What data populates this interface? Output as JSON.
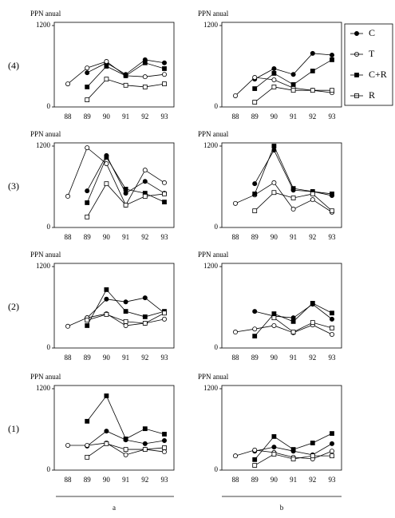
{
  "chart_data": [
    {
      "type": "line",
      "row_label": "(4)",
      "y_label": "PPN anual",
      "categories": [
        "88",
        "89",
        "90",
        "91",
        "92",
        "93"
      ],
      "ylim": [
        0,
        1200
      ],
      "yticks": [
        0,
        1200
      ],
      "series": [
        {
          "marker": "circle",
          "fill": "filled",
          "color": "#000000",
          "values": [
            null,
            505,
            650,
            480,
            695,
            650
          ]
        },
        {
          "marker": "circle",
          "fill": "open",
          "color": "#000000",
          "values": [
            340,
            575,
            670,
            460,
            445,
            480
          ]
        },
        {
          "marker": "square",
          "fill": "filled",
          "color": "#000000",
          "values": [
            null,
            295,
            600,
            460,
            650,
            565
          ]
        },
        {
          "marker": "square",
          "fill": "open",
          "color": "#000000",
          "values": [
            null,
            105,
            410,
            320,
            295,
            340
          ]
        }
      ]
    },
    {
      "type": "line",
      "y_label": "PPN anual",
      "categories": [
        "88",
        "89",
        "90",
        "91",
        "92",
        "93"
      ],
      "ylim": [
        0,
        1200
      ],
      "yticks": [
        0,
        1200
      ],
      "series": [
        {
          "name": "C",
          "marker": "circle",
          "fill": "filled",
          "color": "#000000",
          "values": [
            null,
            410,
            565,
            480,
            790,
            765
          ]
        },
        {
          "name": "T",
          "marker": "circle",
          "fill": "open",
          "color": "#000000",
          "values": [
            165,
            435,
            400,
            280,
            245,
            210
          ]
        },
        {
          "name": "C+R",
          "marker": "square",
          "fill": "filled",
          "color": "#000000",
          "values": [
            null,
            270,
            495,
            330,
            530,
            695
          ]
        },
        {
          "name": "R",
          "marker": "square",
          "fill": "open",
          "color": "#000000",
          "values": [
            null,
            70,
            295,
            245,
            245,
            245
          ]
        }
      ]
    },
    {
      "type": "line",
      "row_label": "(3)",
      "y_label": "PPN anual",
      "categories": [
        "88",
        "89",
        "90",
        "91",
        "92",
        "93"
      ],
      "ylim": [
        0,
        1200
      ],
      "yticks": [
        0,
        1200
      ],
      "series": [
        {
          "marker": "circle",
          "fill": "filled",
          "color": "#000000",
          "values": [
            null,
            540,
            1060,
            505,
            680,
            505
          ]
        },
        {
          "marker": "circle",
          "fill": "open",
          "color": "#000000",
          "values": [
            460,
            1175,
            940,
            330,
            845,
            660
          ]
        },
        {
          "marker": "square",
          "fill": "filled",
          "color": "#000000",
          "values": [
            null,
            365,
            1035,
            565,
            505,
            375
          ]
        },
        {
          "marker": "square",
          "fill": "open",
          "color": "#000000",
          "values": [
            null,
            155,
            645,
            330,
            460,
            495
          ]
        }
      ]
    },
    {
      "type": "line",
      "y_label": "PPN anual",
      "categories": [
        "88",
        "89",
        "90",
        "91",
        "92",
        "93"
      ],
      "ylim": [
        0,
        1200
      ],
      "yticks": [
        0,
        1200
      ],
      "series": [
        {
          "marker": "circle",
          "fill": "filled",
          "color": "#000000",
          "values": [
            null,
            645,
            1140,
            550,
            530,
            470
          ]
        },
        {
          "marker": "circle",
          "fill": "open",
          "color": "#000000",
          "values": [
            355,
            480,
            660,
            270,
            410,
            225
          ]
        },
        {
          "marker": "square",
          "fill": "filled",
          "color": "#000000",
          "values": [
            null,
            495,
            1200,
            575,
            530,
            495
          ]
        },
        {
          "marker": "square",
          "fill": "open",
          "color": "#000000",
          "values": [
            null,
            245,
            515,
            435,
            495,
            245
          ]
        }
      ]
    },
    {
      "type": "line",
      "row_label": "(2)",
      "y_label": "PPN anual",
      "categories": [
        "88",
        "89",
        "90",
        "91",
        "92",
        "93"
      ],
      "ylim": [
        0,
        1200
      ],
      "yticks": [
        0,
        1200
      ],
      "series": [
        {
          "marker": "circle",
          "fill": "filled",
          "color": "#000000",
          "values": [
            null,
            445,
            720,
            680,
            740,
            515
          ]
        },
        {
          "marker": "circle",
          "fill": "open",
          "color": "#000000",
          "values": [
            320,
            445,
            505,
            330,
            365,
            425
          ]
        },
        {
          "marker": "square",
          "fill": "filled",
          "color": "#000000",
          "values": [
            null,
            330,
            860,
            540,
            460,
            540
          ]
        },
        {
          "marker": "square",
          "fill": "open",
          "color": "#000000",
          "values": [
            null,
            410,
            495,
            390,
            365,
            515
          ]
        }
      ]
    },
    {
      "type": "line",
      "y_label": "PPN anual",
      "categories": [
        "88",
        "89",
        "90",
        "91",
        "92",
        "93"
      ],
      "ylim": [
        0,
        1200
      ],
      "yticks": [
        0,
        1200
      ],
      "series": [
        {
          "marker": "circle",
          "fill": "filled",
          "color": "#000000",
          "values": [
            null,
            540,
            470,
            445,
            645,
            425
          ]
        },
        {
          "marker": "circle",
          "fill": "open",
          "color": "#000000",
          "values": [
            235,
            280,
            330,
            225,
            340,
            200
          ]
        },
        {
          "marker": "square",
          "fill": "filled",
          "color": "#000000",
          "values": [
            null,
            175,
            505,
            390,
            660,
            515
          ]
        },
        {
          "marker": "square",
          "fill": "open",
          "color": "#000000",
          "values": [
            null,
            null,
            445,
            235,
            375,
            295
          ]
        }
      ]
    },
    {
      "type": "line",
      "row_label": "(1)",
      "column_label": "a",
      "y_label": "PPN anual",
      "categories": [
        "88",
        "89",
        "90",
        "91",
        "92",
        "93"
      ],
      "ylim": [
        0,
        1200
      ],
      "yticks": [
        0,
        1200
      ],
      "series": [
        {
          "marker": "circle",
          "fill": "filled",
          "color": "#000000",
          "values": [
            null,
            355,
            575,
            445,
            390,
            435
          ]
        },
        {
          "marker": "circle",
          "fill": "open",
          "color": "#000000",
          "values": [
            365,
            365,
            400,
            225,
            305,
            270
          ]
        },
        {
          "marker": "square",
          "fill": "filled",
          "color": "#000000",
          "values": [
            null,
            720,
            1095,
            460,
            610,
            530
          ]
        },
        {
          "marker": "square",
          "fill": "open",
          "color": "#000000",
          "values": [
            null,
            190,
            390,
            305,
            305,
            330
          ]
        }
      ]
    },
    {
      "type": "line",
      "column_label": "b",
      "y_label": "PPN anual",
      "categories": [
        "88",
        "89",
        "90",
        "91",
        "92",
        "93"
      ],
      "ylim": [
        0,
        1200
      ],
      "yticks": [
        0,
        1200
      ],
      "series": [
        {
          "marker": "circle",
          "fill": "filled",
          "color": "#000000",
          "values": [
            null,
            280,
            340,
            280,
            225,
            390
          ]
        },
        {
          "marker": "circle",
          "fill": "open",
          "color": "#000000",
          "values": [
            210,
            295,
            260,
            190,
            165,
            280
          ]
        },
        {
          "marker": "square",
          "fill": "filled",
          "color": "#000000",
          "values": [
            null,
            155,
            495,
            305,
            400,
            540
          ]
        },
        {
          "marker": "square",
          "fill": "open",
          "color": "#000000",
          "values": [
            null,
            70,
            235,
            165,
            210,
            210
          ]
        }
      ]
    }
  ]
}
